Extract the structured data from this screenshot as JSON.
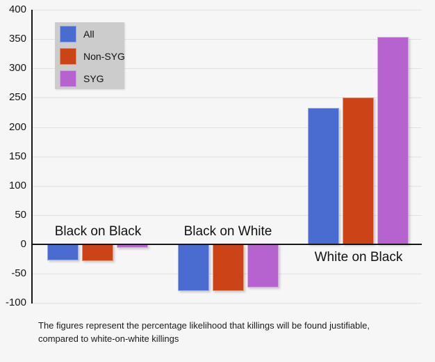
{
  "chart_data": {
    "type": "bar",
    "title": "",
    "categories": [
      "Black on Black",
      "Black on White",
      "White on Black"
    ],
    "series": [
      {
        "name": "All",
        "color": "#4a6cd1",
        "values": [
          -27,
          -79,
          233
        ]
      },
      {
        "name": "Non-SYG",
        "color": "#cb4317",
        "values": [
          -29,
          -80,
          250
        ]
      },
      {
        "name": "SYG",
        "color": "#b763cf",
        "values": [
          -6,
          -73,
          354
        ]
      }
    ],
    "yticks": [
      400,
      350,
      300,
      250,
      200,
      150,
      100,
      50,
      0,
      -50,
      -100
    ],
    "ylim": [
      -100,
      400
    ],
    "grid": true,
    "legend_position": "top-left",
    "axis_color": "#151515",
    "gridline_color": "#e1e1e1",
    "legend_bg_color": "#cccccc",
    "background_color": "#f6f6f6"
  },
  "footnote": {
    "line1": "The figures represent the percentage likelihood that killings will be found justifiable,",
    "line2": "compared to white-on-white killings"
  }
}
